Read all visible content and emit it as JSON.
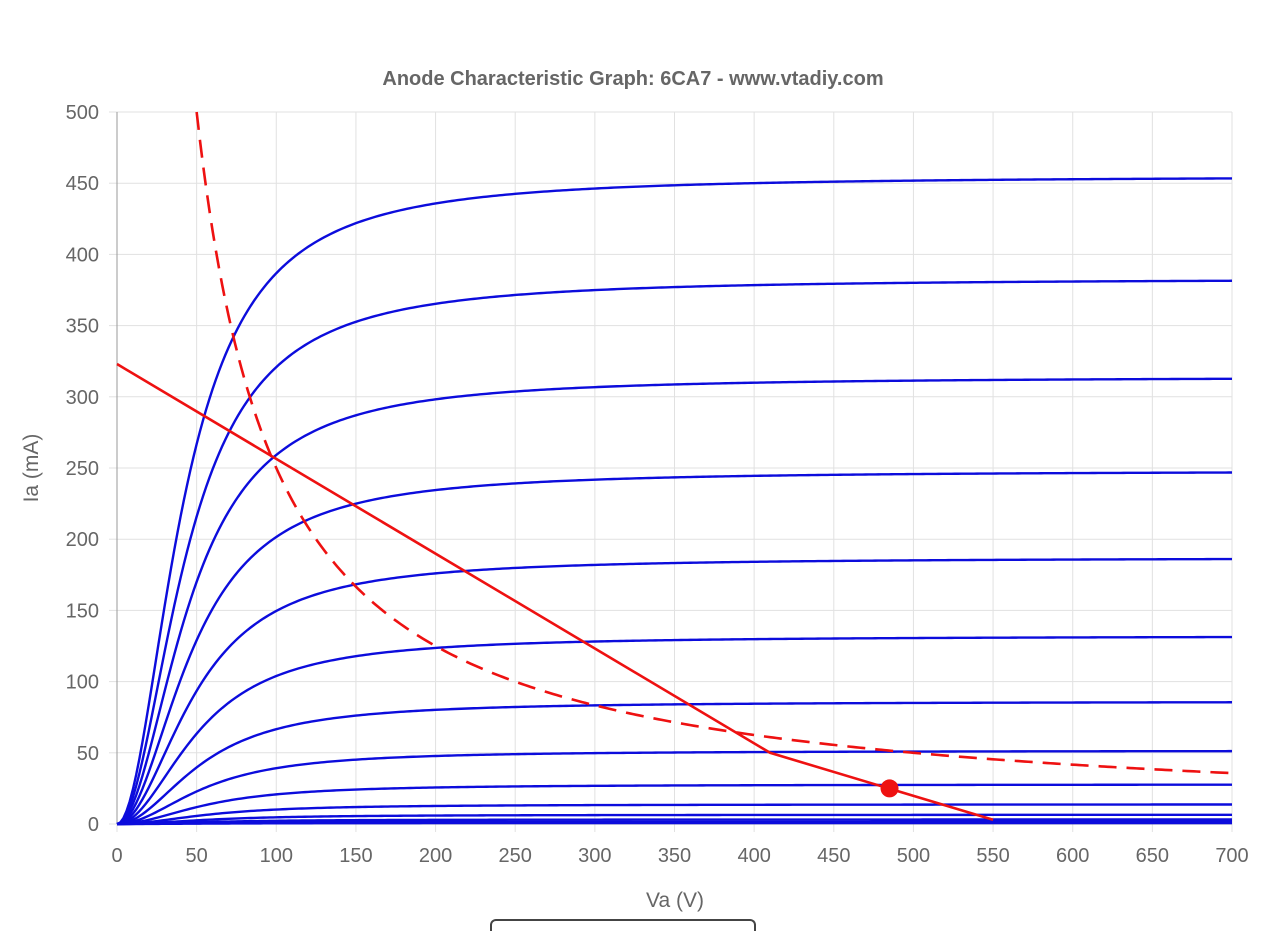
{
  "chart_data": {
    "type": "line",
    "title": "Anode Characteristic Graph: 6CA7 - www.vtadiy.com",
    "xlabel": "Va (V)",
    "ylabel": "Ia (mA)",
    "xlim": [
      0,
      700
    ],
    "ylim": [
      0,
      500
    ],
    "x_ticks": [
      "0",
      "50",
      "100",
      "150",
      "200",
      "250",
      "300",
      "350",
      "400",
      "450",
      "500",
      "550",
      "600",
      "650",
      "700"
    ],
    "y_ticks": [
      "0",
      "50",
      "100",
      "150",
      "200",
      "250",
      "300",
      "350",
      "400",
      "450",
      "500"
    ],
    "grid": true,
    "colors": {
      "curves": "#0c0cdc",
      "load": "#ee1111",
      "grid": "#e1e1e1",
      "text": "#666666"
    },
    "series": [
      {
        "kind": "anode-curve",
        "sat": 455,
        "k": 42,
        "p": 2
      },
      {
        "kind": "anode-curve",
        "sat": 383,
        "k": 44,
        "p": 2
      },
      {
        "kind": "anode-curve",
        "sat": 314,
        "k": 46,
        "p": 2
      },
      {
        "kind": "anode-curve",
        "sat": 248,
        "k": 48,
        "p": 2
      },
      {
        "kind": "anode-curve",
        "sat": 187,
        "k": 50,
        "p": 2
      },
      {
        "kind": "anode-curve",
        "sat": 132,
        "k": 52,
        "p": 2
      },
      {
        "kind": "anode-curve",
        "sat": 86,
        "k": 54,
        "p": 2
      },
      {
        "kind": "anode-curve",
        "sat": 51.5,
        "k": 56,
        "p": 2
      },
      {
        "kind": "anode-curve",
        "sat": 27.8,
        "k": 58,
        "p": 2
      },
      {
        "kind": "anode-curve",
        "sat": 13.8,
        "k": 60,
        "p": 2
      },
      {
        "kind": "anode-curve",
        "sat": 6.5,
        "k": 62,
        "p": 2
      },
      {
        "kind": "anode-curve",
        "sat": 3.2,
        "k": 64,
        "p": 2
      },
      {
        "kind": "anode-curve",
        "sat": 1.6,
        "k": 66,
        "p": 2
      },
      {
        "kind": "anode-curve",
        "sat": 0.7,
        "k": 68,
        "p": 2
      }
    ],
    "load_line": [
      [
        0,
        323
      ],
      [
        410,
        50
      ],
      [
        550,
        3
      ]
    ],
    "max_dissipation_curve": {
      "watts": 25,
      "x_from": 50,
      "x_to": 700
    },
    "operating_point": {
      "x": 485,
      "y": 25
    }
  }
}
